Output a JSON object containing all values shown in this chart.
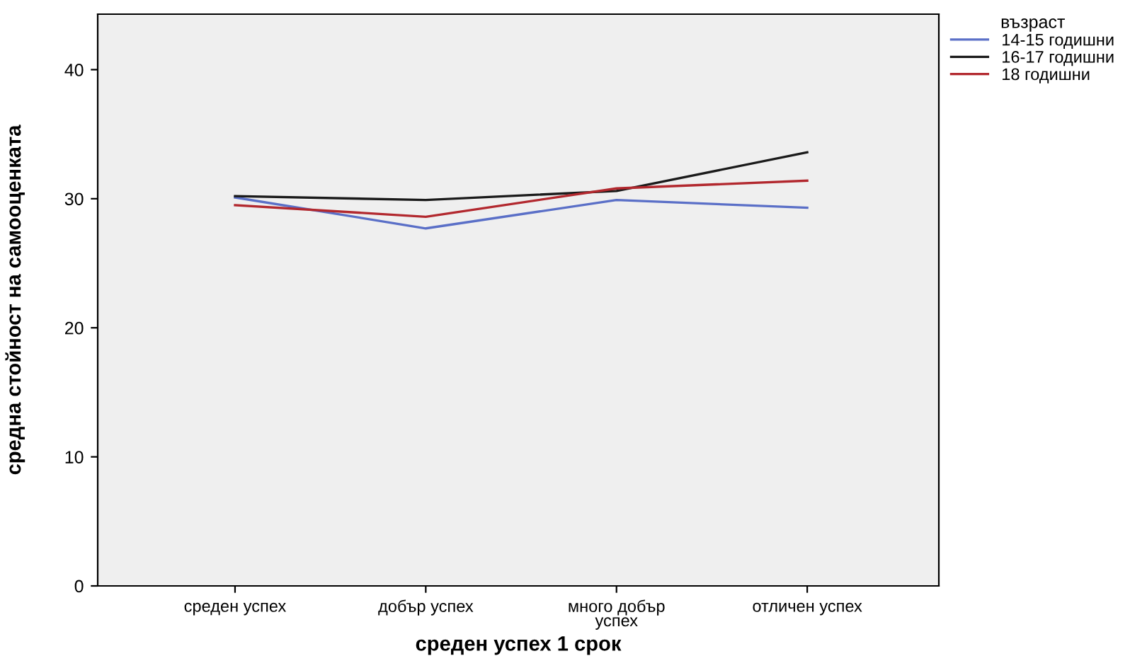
{
  "chart_data": {
    "type": "line",
    "xlabel": "среден успех 1 срок",
    "ylabel": "средна стойност на самооценката",
    "legend_title": "възраст",
    "categories": [
      "среден успех",
      "добър успех",
      "много добър\nуспех",
      "отличен успех"
    ],
    "series": [
      {
        "name": "14-15 годишни",
        "color": "#5a6fc7",
        "values": [
          30.1,
          27.7,
          29.9,
          29.3
        ]
      },
      {
        "name": "16-17 годишни",
        "color": "#1a1a1a",
        "values": [
          30.2,
          29.9,
          30.6,
          33.6
        ]
      },
      {
        "name": "18 годишни",
        "color": "#b2282e",
        "values": [
          29.5,
          28.6,
          30.8,
          31.4
        ]
      }
    ],
    "ylim": [
      0,
      44.3
    ],
    "yticks": [
      0,
      10,
      20,
      30,
      40
    ],
    "grid": false,
    "legend": "right",
    "marker": "none",
    "line_style": "solid"
  }
}
